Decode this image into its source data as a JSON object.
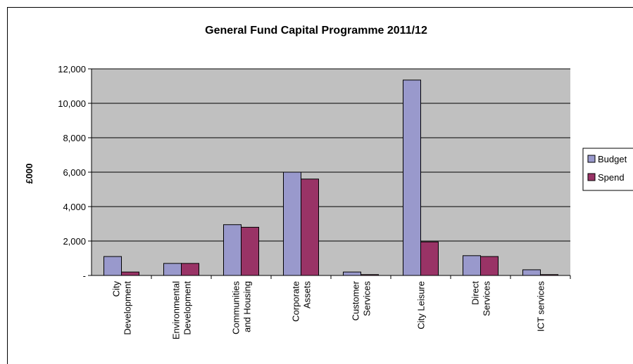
{
  "chart_data": {
    "type": "bar",
    "title": "General Fund Capital Programme 2011/12",
    "ylabel": "£000",
    "xlabel": "",
    "ylim": [
      0,
      12000
    ],
    "yticks": [
      {
        "value": 0,
        "label": "-"
      },
      {
        "value": 2000,
        "label": "2,000"
      },
      {
        "value": 4000,
        "label": "4,000"
      },
      {
        "value": 6000,
        "label": "6,000"
      },
      {
        "value": 8000,
        "label": "8,000"
      },
      {
        "value": 10000,
        "label": "10,000"
      },
      {
        "value": 12000,
        "label": "12,000"
      }
    ],
    "categories": [
      [
        "City",
        "Development"
      ],
      [
        "Environmental",
        "Development"
      ],
      [
        "Communities",
        "and Housing"
      ],
      [
        "Corporate",
        "Assets"
      ],
      [
        "Customer",
        "Services"
      ],
      [
        "City Leisure"
      ],
      [
        "Direct",
        "Services"
      ],
      [
        "ICT services"
      ]
    ],
    "series": [
      {
        "name": "Budget",
        "color": "#9999cc",
        "values": [
          1100,
          700,
          2950,
          6000,
          200,
          11350,
          1150,
          330
        ]
      },
      {
        "name": "Spend",
        "color": "#993366",
        "values": [
          200,
          700,
          2800,
          5600,
          50,
          1950,
          1100,
          50
        ]
      }
    ],
    "plot_background": "#c0c0c0",
    "grid": true,
    "legend_position": "right"
  }
}
